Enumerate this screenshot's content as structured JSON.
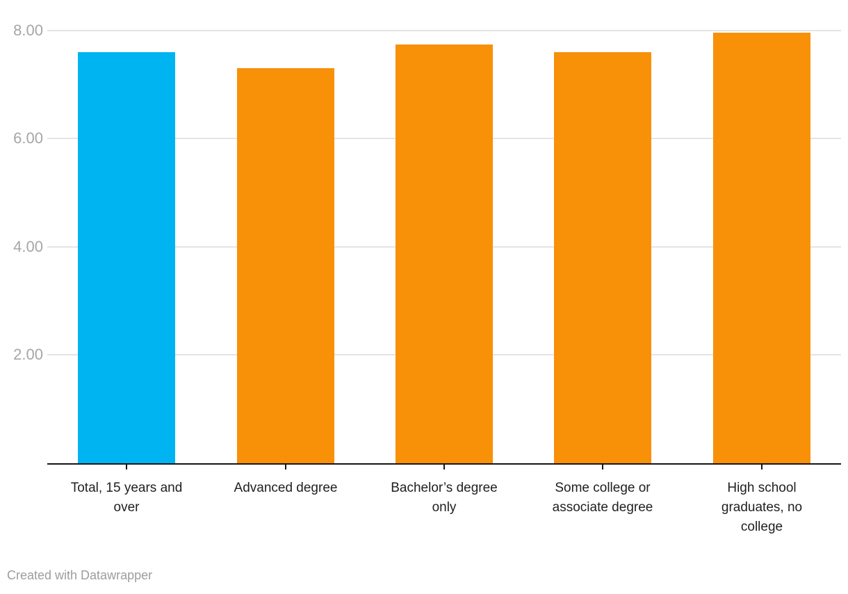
{
  "chart_data": {
    "type": "bar",
    "title": "",
    "xlabel": "",
    "ylabel": "",
    "categories": [
      "Total, 15 years and over",
      "Advanced degree",
      "Bachelor’s degree only",
      "Some college or associate degree",
      "High school graduates, no college"
    ],
    "values": [
      7.6,
      7.3,
      7.74,
      7.6,
      7.95
    ],
    "bar_colors": [
      "#00b4f2",
      "#f89008",
      "#f89008",
      "#f89008",
      "#f89008"
    ],
    "label_lines": [
      [
        "Total, 15 years and",
        "over"
      ],
      [
        "Advanced degree"
      ],
      [
        "Bachelor’s degree",
        "only"
      ],
      [
        "Some college or",
        "associate degree"
      ],
      [
        "High school",
        "graduates, no",
        "college"
      ]
    ],
    "yticks": [
      2,
      4,
      6,
      8
    ],
    "ytick_labels": [
      "2.00",
      "4.00",
      "6.00",
      "8.00"
    ],
    "ylim": [
      0,
      8.56
    ],
    "grid": true,
    "legend": false
  },
  "colors": {
    "highlight_bar": "#00b4f2",
    "default_bar": "#f89008",
    "axis": "#151515",
    "gridline": "#e4e4e4",
    "ytick_text": "#a6a6a6",
    "xtick_text": "#1f1f1f",
    "attribution_text": "#9d9d9d",
    "background": "#ffffff"
  },
  "footer": {
    "attribution": "Created with Datawrapper"
  }
}
